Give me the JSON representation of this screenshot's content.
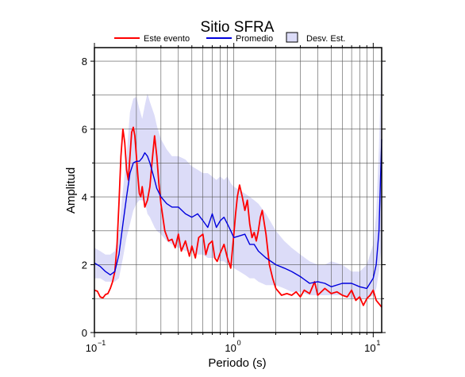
{
  "chart_data": {
    "type": "line",
    "title": "Sitio SFRA",
    "xlabel": "Periodo (s)",
    "ylabel": "Amplitud",
    "x_scale": "log",
    "xlim": [
      0.1,
      11.5
    ],
    "ylim": [
      0,
      8.4
    ],
    "grid": true,
    "legend_position": "top-center",
    "x_ticks": [
      {
        "value": 0.1,
        "base": "10",
        "exp": "−1"
      },
      {
        "value": 1,
        "base": "10",
        "exp": "0"
      },
      {
        "value": 10,
        "base": "10",
        "exp": "1"
      }
    ],
    "y_ticks": [
      0,
      2,
      4,
      6,
      8
    ],
    "legend": [
      {
        "label": "Este evento",
        "color": "#ff0000",
        "kind": "line"
      },
      {
        "label": "Promedio",
        "color": "#0000dd",
        "kind": "line"
      },
      {
        "label": "Desv. Est.",
        "color": "#dcdcf8",
        "kind": "box"
      }
    ],
    "series": [
      {
        "name": "Este evento",
        "color": "#ff0000",
        "x": [
          0.1,
          0.105,
          0.11,
          0.115,
          0.12,
          0.125,
          0.13,
          0.135,
          0.14,
          0.145,
          0.15,
          0.155,
          0.16,
          0.165,
          0.17,
          0.175,
          0.18,
          0.185,
          0.19,
          0.195,
          0.2,
          0.205,
          0.21,
          0.215,
          0.22,
          0.23,
          0.24,
          0.25,
          0.26,
          0.27,
          0.28,
          0.29,
          0.3,
          0.32,
          0.34,
          0.36,
          0.38,
          0.4,
          0.42,
          0.45,
          0.48,
          0.5,
          0.53,
          0.56,
          0.6,
          0.63,
          0.66,
          0.7,
          0.73,
          0.76,
          0.8,
          0.85,
          0.9,
          0.95,
          1.0,
          1.03,
          1.06,
          1.1,
          1.15,
          1.2,
          1.25,
          1.3,
          1.35,
          1.4,
          1.45,
          1.5,
          1.55,
          1.6,
          1.7,
          1.8,
          1.9,
          2.0,
          2.2,
          2.4,
          2.6,
          2.8,
          3.0,
          3.2,
          3.5,
          3.8,
          4.0,
          4.5,
          5.0,
          5.5,
          6.0,
          6.5,
          7.0,
          7.5,
          8.0,
          8.5,
          9.0,
          9.5,
          10.0,
          10.5,
          11.0,
          11.5
        ],
        "y": [
          1.25,
          1.22,
          1.05,
          1.02,
          1.12,
          1.15,
          1.3,
          1.5,
          1.8,
          2.5,
          3.8,
          5.2,
          6.0,
          5.6,
          4.8,
          4.5,
          5.2,
          5.9,
          6.05,
          5.8,
          5.2,
          4.6,
          4.1,
          4.0,
          4.3,
          3.7,
          3.9,
          4.3,
          5.1,
          5.8,
          5.2,
          4.4,
          3.8,
          3.0,
          2.7,
          2.75,
          2.5,
          2.9,
          2.4,
          2.7,
          2.25,
          2.55,
          2.2,
          2.8,
          2.9,
          2.3,
          2.6,
          2.7,
          2.2,
          2.1,
          2.35,
          2.6,
          2.2,
          1.9,
          2.9,
          3.5,
          4.0,
          4.35,
          4.0,
          3.6,
          3.9,
          3.2,
          2.8,
          2.95,
          2.7,
          3.0,
          3.4,
          3.6,
          2.9,
          2.0,
          1.6,
          1.3,
          1.1,
          1.15,
          1.1,
          1.2,
          1.05,
          1.25,
          1.15,
          1.5,
          1.1,
          1.3,
          1.15,
          1.2,
          1.1,
          1.05,
          1.25,
          0.95,
          1.05,
          0.8,
          1.0,
          1.1,
          1.25,
          0.95,
          0.85,
          0.75
        ]
      },
      {
        "name": "Promedio",
        "color": "#0000dd",
        "x": [
          0.1,
          0.11,
          0.12,
          0.13,
          0.14,
          0.15,
          0.16,
          0.17,
          0.18,
          0.19,
          0.2,
          0.21,
          0.22,
          0.23,
          0.24,
          0.25,
          0.27,
          0.28,
          0.3,
          0.33,
          0.36,
          0.4,
          0.45,
          0.5,
          0.55,
          0.6,
          0.65,
          0.7,
          0.75,
          0.8,
          0.85,
          0.9,
          0.95,
          1.0,
          1.1,
          1.2,
          1.3,
          1.4,
          1.5,
          1.7,
          2.0,
          2.3,
          2.6,
          3.0,
          3.5,
          4.0,
          4.5,
          5.0,
          6.0,
          7.0,
          8.0,
          9.0,
          10.0,
          10.5,
          11.0,
          11.5
        ],
        "y": [
          2.05,
          1.95,
          1.8,
          1.7,
          1.8,
          2.3,
          3.2,
          4.0,
          4.7,
          5.0,
          5.05,
          5.05,
          5.15,
          5.3,
          5.2,
          5.0,
          4.5,
          4.25,
          4.0,
          3.8,
          3.7,
          3.7,
          3.5,
          3.4,
          3.5,
          3.3,
          3.1,
          3.5,
          3.1,
          3.3,
          3.4,
          3.2,
          3.0,
          2.8,
          2.85,
          2.9,
          2.6,
          2.6,
          2.4,
          2.2,
          2.0,
          1.9,
          1.8,
          1.65,
          1.45,
          1.5,
          1.45,
          1.35,
          1.45,
          1.45,
          1.35,
          1.3,
          1.6,
          2.0,
          3.0,
          5.7
        ]
      }
    ],
    "band": {
      "name": "Desv. Est.",
      "color": "#dcdcf8",
      "x": [
        0.1,
        0.11,
        0.12,
        0.13,
        0.14,
        0.15,
        0.16,
        0.17,
        0.18,
        0.19,
        0.2,
        0.21,
        0.22,
        0.23,
        0.24,
        0.25,
        0.27,
        0.28,
        0.3,
        0.33,
        0.36,
        0.4,
        0.45,
        0.5,
        0.55,
        0.6,
        0.65,
        0.7,
        0.75,
        0.8,
        0.85,
        0.9,
        0.95,
        1.0,
        1.1,
        1.2,
        1.3,
        1.4,
        1.5,
        1.7,
        2.0,
        2.3,
        2.6,
        3.0,
        3.5,
        4.0,
        4.5,
        5.0,
        6.0,
        7.0,
        8.0,
        9.0,
        10.0,
        10.5,
        11.0,
        11.5
      ],
      "upper": [
        2.5,
        2.4,
        2.3,
        2.3,
        2.4,
        3.0,
        4.2,
        5.2,
        6.5,
        6.9,
        6.95,
        6.6,
        6.3,
        6.7,
        7.05,
        6.8,
        6.4,
        6.1,
        5.7,
        5.4,
        5.2,
        5.2,
        5.1,
        4.9,
        4.8,
        4.7,
        4.7,
        4.6,
        4.5,
        4.6,
        4.5,
        4.6,
        4.4,
        4.3,
        4.2,
        4.1,
        4.0,
        3.9,
        3.8,
        3.5,
        3.0,
        2.7,
        2.5,
        2.3,
        2.1,
        2.0,
        2.0,
        2.1,
        2.0,
        1.8,
        1.8,
        2.0,
        2.6,
        3.5,
        5.5,
        8.4
      ],
      "lower": [
        1.6,
        1.6,
        1.5,
        1.5,
        1.5,
        1.6,
        2.2,
        2.8,
        3.2,
        3.6,
        3.8,
        3.9,
        3.9,
        3.85,
        3.5,
        3.4,
        3.1,
        3.0,
        2.9,
        2.7,
        2.6,
        2.5,
        2.4,
        2.4,
        2.3,
        2.3,
        2.2,
        2.2,
        2.2,
        2.1,
        2.1,
        2.0,
        2.0,
        1.9,
        1.8,
        1.7,
        1.6,
        1.6,
        1.5,
        1.4,
        1.4,
        1.3,
        1.2,
        1.2,
        1.1,
        1.1,
        1.1,
        1.1,
        1.1,
        1.0,
        1.0,
        1.0,
        1.1,
        1.3,
        1.8,
        2.6
      ]
    }
  }
}
